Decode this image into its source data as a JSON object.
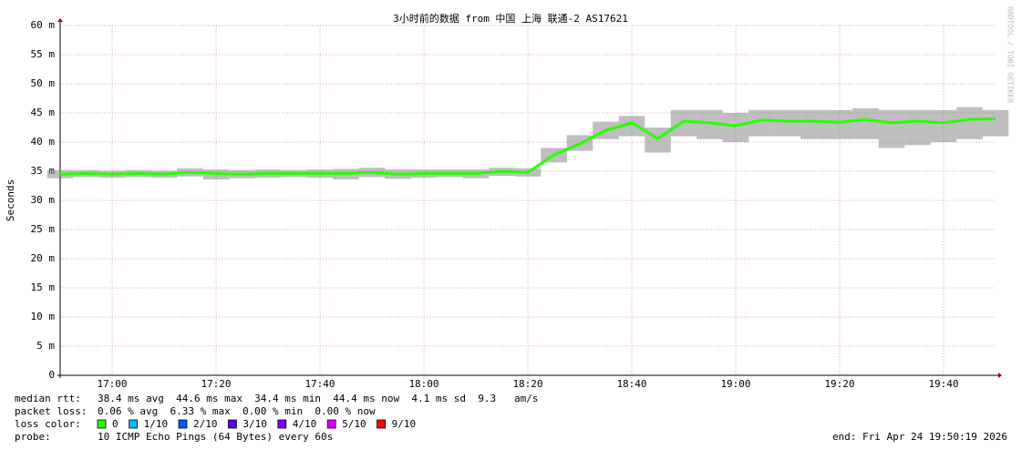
{
  "chart_data": {
    "type": "smokeline",
    "title": "3小时前的数据 from 中国 上海 联通-2 AS17621",
    "y_label": "Seconds",
    "watermark": "RRDTOOL / TOBI OETIKER",
    "x": [
      "16:50",
      "16:55",
      "17:00",
      "17:05",
      "17:10",
      "17:15",
      "17:20",
      "17:25",
      "17:30",
      "17:35",
      "17:40",
      "17:45",
      "17:50",
      "17:55",
      "18:00",
      "18:05",
      "18:10",
      "18:15",
      "18:20",
      "18:25",
      "18:30",
      "18:35",
      "18:40",
      "18:45",
      "18:50",
      "18:55",
      "19:00",
      "19:05",
      "19:10",
      "19:15",
      "19:20",
      "19:25",
      "19:30",
      "19:35",
      "19:40",
      "19:45",
      "19:50"
    ],
    "series": [
      {
        "color": "#26ff00",
        "values": [
          0.0345,
          0.0346,
          0.0345,
          0.0346,
          0.0345,
          0.0348,
          0.0346,
          0.0345,
          0.0346,
          0.0346,
          0.0346,
          0.0346,
          0.0348,
          0.0345,
          0.0346,
          0.0346,
          0.0346,
          0.035,
          0.0348,
          0.0378,
          0.0397,
          0.042,
          0.0433,
          0.0406,
          0.0436,
          0.0433,
          0.0428,
          0.0438,
          0.0436,
          0.0436,
          0.0434,
          0.0439,
          0.0433,
          0.0436,
          0.0433,
          0.0439,
          0.044
        ]
      }
    ],
    "smoke_min": [
      0.0338,
      0.034,
      0.0339,
      0.034,
      0.0339,
      0.0341,
      0.0336,
      0.0338,
      0.0339,
      0.034,
      0.0339,
      0.0336,
      0.034,
      0.0337,
      0.0339,
      0.034,
      0.0338,
      0.0342,
      0.0341,
      0.0365,
      0.0385,
      0.0405,
      0.041,
      0.0382,
      0.041,
      0.0405,
      0.04,
      0.041,
      0.041,
      0.0405,
      0.0405,
      0.0405,
      0.039,
      0.0395,
      0.04,
      0.0405,
      0.041
    ],
    "smoke_max": [
      0.0352,
      0.0352,
      0.0351,
      0.0352,
      0.0351,
      0.0355,
      0.0353,
      0.0352,
      0.0353,
      0.0352,
      0.0353,
      0.0354,
      0.0356,
      0.0353,
      0.0353,
      0.0353,
      0.0353,
      0.0356,
      0.0355,
      0.039,
      0.0412,
      0.0435,
      0.0445,
      0.0425,
      0.0455,
      0.0455,
      0.045,
      0.0455,
      0.0455,
      0.0455,
      0.0455,
      0.0458,
      0.0455,
      0.0455,
      0.0455,
      0.046,
      0.0455
    ],
    "xlim": [
      "16:50",
      "19:50"
    ],
    "xticks": [
      "17:00",
      "17:20",
      "17:40",
      "18:00",
      "18:20",
      "18:40",
      "19:00",
      "19:20",
      "19:40"
    ],
    "ylim": [
      0,
      0.06
    ],
    "yticks": [
      0,
      {
        "value": 0.005,
        "label": "5 m"
      },
      {
        "value": 0.01,
        "label": "10 m"
      },
      {
        "value": 0.015,
        "label": "15 m"
      },
      {
        "value": 0.02,
        "label": "20 m"
      },
      {
        "value": 0.025,
        "label": "25 m"
      },
      {
        "value": 0.03,
        "label": "30 m"
      },
      {
        "value": 0.035,
        "label": "35 m"
      },
      {
        "value": 0.04,
        "label": "40 m"
      },
      {
        "value": 0.045,
        "label": "45 m"
      },
      {
        "value": 0.05,
        "label": "50 m"
      },
      {
        "value": 0.055,
        "label": "55 m"
      },
      {
        "value": 0.06,
        "label": "60 m"
      }
    ],
    "grid": true,
    "footer": [
      {
        "label": "median rtt:",
        "text": "38.4 ms avg  44.6 ms max  34.4 ms min  44.4 ms now  4.1 ms sd  9.3   am/s"
      },
      {
        "label": "packet loss:",
        "text": "0.06 % avg  6.33 % max  0.00 % min  0.00 % now"
      }
    ],
    "loss_label": "loss color:",
    "loss_colors": [
      {
        "label": "0",
        "color": "#26ff00"
      },
      {
        "label": "1/10",
        "color": "#00b8ff"
      },
      {
        "label": "2/10",
        "color": "#0059ff"
      },
      {
        "label": "3/10",
        "color": "#5e00ff"
      },
      {
        "label": "4/10",
        "color": "#7e00ff"
      },
      {
        "label": "5/10",
        "color": "#dd00ff"
      },
      {
        "label": "9/10",
        "color": "#ff0000"
      }
    ],
    "probe_label": "probe:",
    "probe": "10 ICMP Echo Pings (64 Bytes) every 60s",
    "end": "end: Fri Apr 24 19:50:19 2026"
  }
}
